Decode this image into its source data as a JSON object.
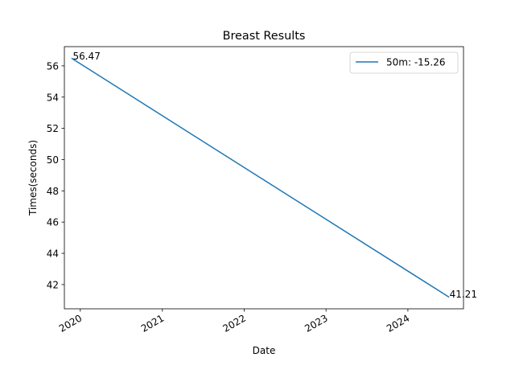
{
  "chart_data": {
    "type": "line",
    "title": "Breast Results",
    "xlabel": "Date",
    "ylabel": "Times(seconds)",
    "x_type": "date",
    "xlim": [
      "2019-10-22",
      "2024-09-05"
    ],
    "ylim": [
      40.45,
      57.23
    ],
    "x_ticks": [
      "2020-01-01",
      "2021-01-01",
      "2022-01-01",
      "2023-01-01",
      "2024-01-01"
    ],
    "x_tick_labels": [
      "2020",
      "2021",
      "2022",
      "2023",
      "2024"
    ],
    "y_ticks": [
      42,
      44,
      46,
      48,
      50,
      52,
      54,
      56
    ],
    "y_tick_labels": [
      "42",
      "44",
      "46",
      "48",
      "50",
      "52",
      "54",
      "56"
    ],
    "grid": false,
    "legend_position": "upper right",
    "series": [
      {
        "name": "50m: -15.26",
        "color": "#1f77b4",
        "x": [
          "2019-11-25",
          "2024-07-01"
        ],
        "y": [
          56.47,
          41.21
        ]
      }
    ],
    "annotations": [
      {
        "text": "56.47",
        "x": "2019-11-25",
        "y": 56.47
      },
      {
        "text": "41.21",
        "x": "2024-07-01",
        "y": 41.21
      }
    ]
  }
}
